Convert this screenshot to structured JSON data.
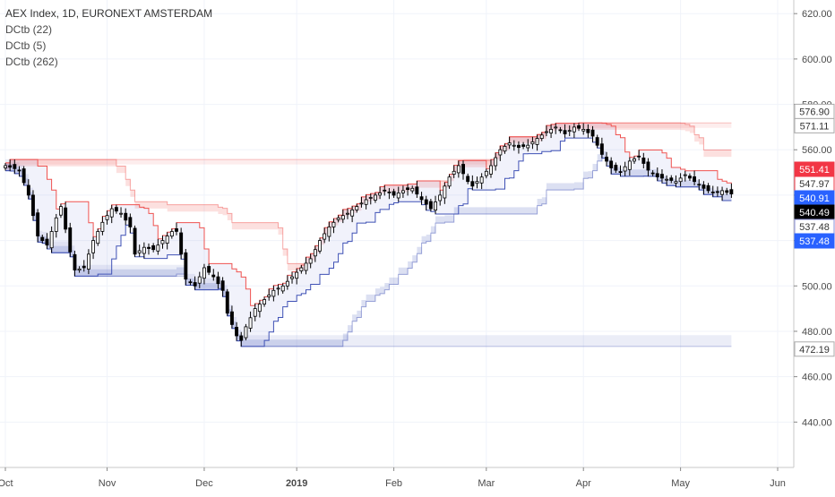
{
  "chart_data": {
    "type": "candlestick",
    "title": "AEX Index, 1D, EURONEXT AMSTERDAM",
    "indicators": [
      {
        "name": "DCtb (22)",
        "colors": {
          "upper": "#ef5350",
          "lower": "#3f51b5"
        }
      },
      {
        "name": "DCtb (5)",
        "colors": {
          "upper": "#ef5350",
          "lower": "#3f51b5"
        }
      },
      {
        "name": "DCtb (262)",
        "colors": {
          "upper": "#ef5350",
          "lower": "#3f51b5"
        }
      }
    ],
    "y_axis": {
      "ylim": [
        420,
        626
      ],
      "ticks": [
        "620.00",
        "600.00",
        "580.00",
        "560.00",
        "540.00",
        "520.00",
        "500.00",
        "480.00",
        "460.00",
        "440.00"
      ],
      "tick_values": [
        620,
        600,
        580,
        560,
        540,
        520,
        500,
        480,
        460,
        440
      ]
    },
    "x_axis": {
      "labels": [
        {
          "label": "Oct",
          "day": 0
        },
        {
          "label": "Nov",
          "day": 22
        },
        {
          "label": "Dec",
          "day": 43
        },
        {
          "label": "2019",
          "day": 63
        },
        {
          "label": "Feb",
          "day": 84
        },
        {
          "label": "Mar",
          "day": 104
        },
        {
          "label": "Apr",
          "day": 125
        },
        {
          "label": "May",
          "day": 146
        },
        {
          "label": "Jun",
          "day": 167
        }
      ],
      "total_days": 169
    },
    "price_labels": [
      {
        "text": "576.90",
        "value": 576.9,
        "bg": "#ffffff",
        "fg": "#333333",
        "border": "#aaaaaa"
      },
      {
        "text": "571.11",
        "value": 571.11,
        "bg": "#ffffff",
        "fg": "#333333",
        "border": "#aaaaaa"
      },
      {
        "text": "551.41",
        "value": 551.41,
        "bg": "#f23645",
        "fg": "#ffffff",
        "border": "#f23645"
      },
      {
        "text": "547.97",
        "value": 547.97,
        "bg": "#ffffff",
        "fg": "#333333",
        "border": "#f23645"
      },
      {
        "text": "540.91",
        "value": 540.91,
        "bg": "#2962ff",
        "fg": "#ffffff",
        "border": "#2962ff"
      },
      {
        "text": "540.49",
        "value": 540.49,
        "bg": "#000000",
        "fg": "#ffffff",
        "border": "#000000"
      },
      {
        "text": "537.48",
        "value": 537.48,
        "bg": "#ffffff",
        "fg": "#333333",
        "border": "#8a8fd8"
      },
      {
        "text": "537.48",
        "value": 537.48,
        "bg": "#2962ff",
        "fg": "#ffffff",
        "border": "#2962ff"
      },
      {
        "text": "472.19",
        "value": 472.19,
        "bg": "#ffffff",
        "fg": "#333333",
        "border": "#aaaaaa"
      }
    ],
    "close_series": [
      {
        "day": 0,
        "close": 553
      },
      {
        "day": 3,
        "close": 551
      },
      {
        "day": 5,
        "close": 540
      },
      {
        "day": 7,
        "close": 522
      },
      {
        "day": 9,
        "close": 518
      },
      {
        "day": 11,
        "close": 530
      },
      {
        "day": 12,
        "close": 535
      },
      {
        "day": 14,
        "close": 515
      },
      {
        "day": 15,
        "close": 507
      },
      {
        "day": 17,
        "close": 508
      },
      {
        "day": 19,
        "close": 520
      },
      {
        "day": 21,
        "close": 528
      },
      {
        "day": 23,
        "close": 534
      },
      {
        "day": 25,
        "close": 532
      },
      {
        "day": 27,
        "close": 526
      },
      {
        "day": 28,
        "close": 514
      },
      {
        "day": 30,
        "close": 517
      },
      {
        "day": 32,
        "close": 516
      },
      {
        "day": 34,
        "close": 520
      },
      {
        "day": 36,
        "close": 524
      },
      {
        "day": 37,
        "close": 524
      },
      {
        "day": 38,
        "close": 514
      },
      {
        "day": 39,
        "close": 503
      },
      {
        "day": 41,
        "close": 500
      },
      {
        "day": 43,
        "close": 508
      },
      {
        "day": 45,
        "close": 504
      },
      {
        "day": 47,
        "close": 498
      },
      {
        "day": 48,
        "close": 488
      },
      {
        "day": 50,
        "close": 478
      },
      {
        "day": 51,
        "close": 476
      },
      {
        "day": 52,
        "close": 482
      },
      {
        "day": 54,
        "close": 490
      },
      {
        "day": 56,
        "close": 494
      },
      {
        "day": 58,
        "close": 498
      },
      {
        "day": 60,
        "close": 500
      },
      {
        "day": 62,
        "close": 504
      },
      {
        "day": 64,
        "close": 508
      },
      {
        "day": 66,
        "close": 512
      },
      {
        "day": 68,
        "close": 520
      },
      {
        "day": 70,
        "close": 526
      },
      {
        "day": 72,
        "close": 530
      },
      {
        "day": 74,
        "close": 532
      },
      {
        "day": 76,
        "close": 535
      },
      {
        "day": 78,
        "close": 538
      },
      {
        "day": 80,
        "close": 540
      },
      {
        "day": 82,
        "close": 542
      },
      {
        "day": 84,
        "close": 540
      },
      {
        "day": 86,
        "close": 542
      },
      {
        "day": 88,
        "close": 543
      },
      {
        "day": 90,
        "close": 538
      },
      {
        "day": 92,
        "close": 534
      },
      {
        "day": 94,
        "close": 540
      },
      {
        "day": 96,
        "close": 548
      },
      {
        "day": 98,
        "close": 553
      },
      {
        "day": 100,
        "close": 546
      },
      {
        "day": 101,
        "close": 544
      },
      {
        "day": 103,
        "close": 548
      },
      {
        "day": 105,
        "close": 553
      },
      {
        "day": 107,
        "close": 560
      },
      {
        "day": 109,
        "close": 563
      },
      {
        "day": 111,
        "close": 561
      },
      {
        "day": 113,
        "close": 562
      },
      {
        "day": 115,
        "close": 565
      },
      {
        "day": 117,
        "close": 568
      },
      {
        "day": 119,
        "close": 570
      },
      {
        "day": 121,
        "close": 567
      },
      {
        "day": 123,
        "close": 570
      },
      {
        "day": 125,
        "close": 569
      },
      {
        "day": 127,
        "close": 566
      },
      {
        "day": 129,
        "close": 558
      },
      {
        "day": 131,
        "close": 552
      },
      {
        "day": 133,
        "close": 550
      },
      {
        "day": 135,
        "close": 555
      },
      {
        "day": 137,
        "close": 557
      },
      {
        "day": 139,
        "close": 551
      },
      {
        "day": 141,
        "close": 548
      },
      {
        "day": 143,
        "close": 547
      },
      {
        "day": 145,
        "close": 546
      },
      {
        "day": 147,
        "close": 549
      },
      {
        "day": 149,
        "close": 546
      },
      {
        "day": 151,
        "close": 543
      },
      {
        "day": 153,
        "close": 541
      },
      {
        "day": 155,
        "close": 542
      },
      {
        "day": 157,
        "close": 540.5
      }
    ]
  }
}
